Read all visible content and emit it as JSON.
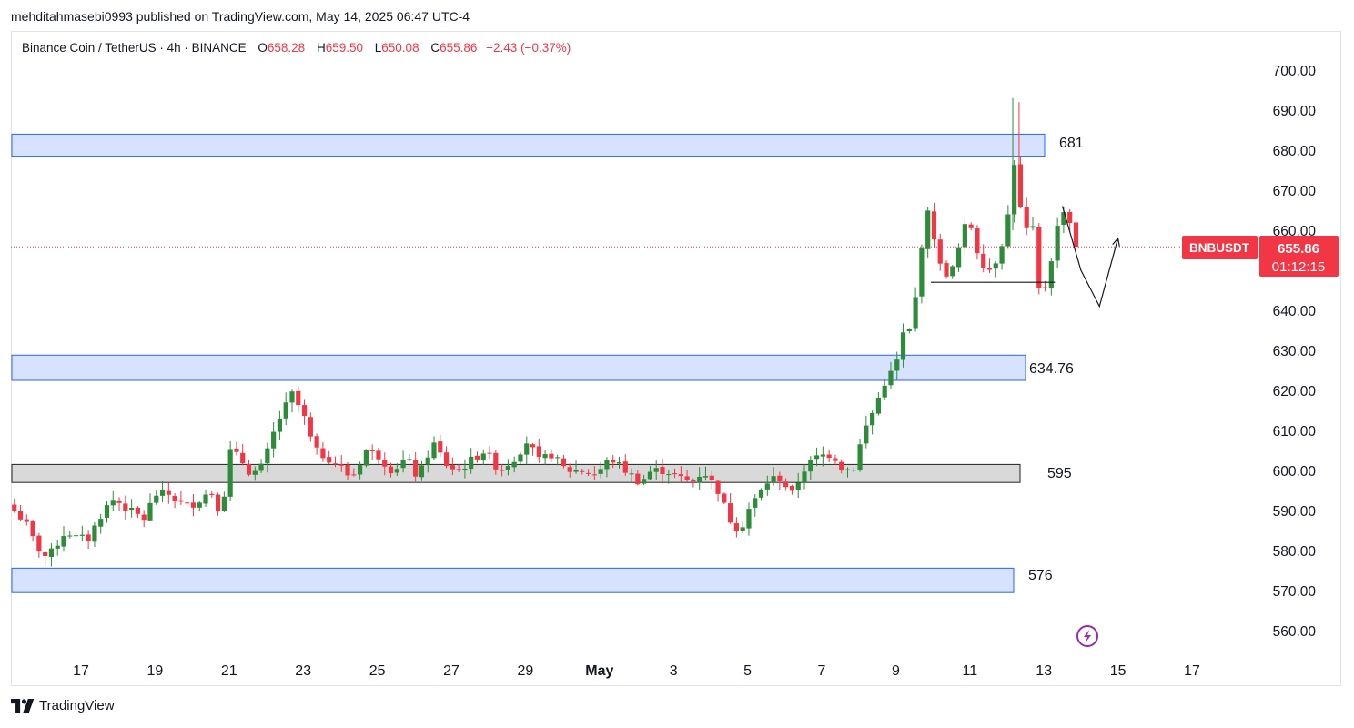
{
  "header": {
    "published": "mehditahmasebi0993 published on TradingView.com, May 14, 2025 06:47 UTC-4"
  },
  "legend": {
    "symbol": "Binance Coin / TetherUS · 4h · BINANCE",
    "open_label": "O",
    "open": "658.28",
    "high_label": "H",
    "high": "659.50",
    "low_label": "L",
    "low": "650.08",
    "close_label": "C",
    "close": "655.86",
    "change": "−2.43 (−0.37%)"
  },
  "price_tag": {
    "symbol": "BNBUSDT",
    "price": "655.86",
    "countdown": "01:12:15"
  },
  "footer": {
    "brand": "TradingView"
  },
  "colors": {
    "up": "#089981",
    "up_body": "#2e8b3a",
    "down": "#f23645",
    "zone_fill": "#d6e2ff",
    "zone_border": "#2962ff",
    "gray_zone_fill": "#d9d9d9",
    "gray_zone_border": "#222222",
    "price_line": "#f23645",
    "text": "#131722"
  },
  "icons": {
    "alert": "lightning-icon",
    "logo": "tradingview-logo-icon"
  },
  "chart_data": {
    "type": "candlestick",
    "title": "Binance Coin / TetherUS · 4h · BINANCE",
    "ylim": [
      555,
      702
    ],
    "y_ticks": [
      "700.00",
      "690.00",
      "680.00",
      "670.00",
      "660.00",
      "650.00",
      "640.00",
      "630.00",
      "620.00",
      "610.00",
      "600.00",
      "590.00",
      "580.00",
      "570.00",
      "560.00"
    ],
    "x_ticks": [
      {
        "label": "17",
        "day": 17
      },
      {
        "label": "19",
        "day": 19
      },
      {
        "label": "21",
        "day": 21
      },
      {
        "label": "23",
        "day": 23
      },
      {
        "label": "25",
        "day": 25
      },
      {
        "label": "27",
        "day": 27
      },
      {
        "label": "29",
        "day": 29
      },
      {
        "label": "May",
        "day": 31
      },
      {
        "label": "3",
        "day": 33
      },
      {
        "label": "5",
        "day": 35
      },
      {
        "label": "7",
        "day": 37
      },
      {
        "label": "9",
        "day": 39
      },
      {
        "label": "11",
        "day": 41
      },
      {
        "label": "13",
        "day": 43
      },
      {
        "label": "15",
        "day": 45
      },
      {
        "label": "17",
        "day": 47
      }
    ],
    "day_range": [
      15.2,
      47.5
    ],
    "candles_per_day": 6,
    "first_candle_day": 15.2,
    "close_path": [
      [
        15.2,
        590
      ],
      [
        15.5,
        587
      ],
      [
        15.8,
        581
      ],
      [
        16.1,
        578
      ],
      [
        16.3,
        581
      ],
      [
        16.6,
        585
      ],
      [
        16.9,
        583
      ],
      [
        17.2,
        583
      ],
      [
        17.6,
        590
      ],
      [
        17.9,
        593
      ],
      [
        18.3,
        590
      ],
      [
        18.7,
        588
      ],
      [
        19.0,
        594
      ],
      [
        19.4,
        594
      ],
      [
        19.8,
        591
      ],
      [
        20.1,
        592
      ],
      [
        20.5,
        595
      ],
      [
        20.8,
        589
      ],
      [
        21.0,
        605
      ],
      [
        21.3,
        603
      ],
      [
        21.6,
        599
      ],
      [
        21.9,
        601
      ],
      [
        22.3,
        612
      ],
      [
        22.7,
        619
      ],
      [
        23.0,
        614
      ],
      [
        23.3,
        605
      ],
      [
        23.7,
        603
      ],
      [
        24.0,
        601
      ],
      [
        24.3,
        598
      ],
      [
        24.7,
        605
      ],
      [
        25.0,
        604
      ],
      [
        25.4,
        600
      ],
      [
        25.8,
        603
      ],
      [
        26.1,
        598
      ],
      [
        26.5,
        607
      ],
      [
        26.9,
        601
      ],
      [
        27.2,
        600
      ],
      [
        27.6,
        603
      ],
      [
        27.9,
        605
      ],
      [
        28.3,
        600
      ],
      [
        28.7,
        603
      ],
      [
        29.1,
        608
      ],
      [
        29.3,
        602
      ],
      [
        29.7,
        604
      ],
      [
        30.1,
        600
      ],
      [
        30.5,
        600
      ],
      [
        30.9,
        599
      ],
      [
        31.3,
        603
      ],
      [
        31.7,
        600
      ],
      [
        32.1,
        597
      ],
      [
        32.4,
        600
      ],
      [
        32.8,
        600
      ],
      [
        33.2,
        598
      ],
      [
        33.5,
        597
      ],
      [
        33.8,
        600
      ],
      [
        34.2,
        595
      ],
      [
        34.5,
        588
      ],
      [
        34.8,
        585
      ],
      [
        35.0,
        590
      ],
      [
        35.3,
        594
      ],
      [
        35.6,
        598
      ],
      [
        35.9,
        598
      ],
      [
        36.2,
        594
      ],
      [
        36.5,
        600
      ],
      [
        36.8,
        603
      ],
      [
        37.1,
        604
      ],
      [
        37.3,
        604
      ],
      [
        37.6,
        600
      ],
      [
        37.9,
        601
      ],
      [
        38.1,
        609
      ],
      [
        38.4,
        615
      ],
      [
        38.7,
        622
      ],
      [
        39.0,
        626
      ],
      [
        39.2,
        634
      ],
      [
        39.4,
        635
      ],
      [
        39.6,
        647
      ],
      [
        39.8,
        666
      ],
      [
        40.0,
        660
      ],
      [
        40.2,
        651
      ],
      [
        40.4,
        649
      ],
      [
        40.6,
        651
      ],
      [
        40.8,
        660
      ],
      [
        41.0,
        662
      ],
      [
        41.2,
        655
      ],
      [
        41.4,
        651
      ],
      [
        41.6,
        650
      ],
      [
        41.8,
        655
      ],
      [
        42.0,
        661
      ],
      [
        42.2,
        677
      ],
      [
        42.3,
        668
      ],
      [
        42.5,
        660
      ],
      [
        42.7,
        660
      ],
      [
        42.9,
        642
      ],
      [
        43.1,
        648
      ],
      [
        43.3,
        658
      ],
      [
        43.5,
        666
      ],
      [
        43.7,
        662
      ],
      [
        43.9,
        659
      ],
      [
        44.0,
        655.86
      ]
    ],
    "annotations": [
      {
        "label": "681",
        "type": "zone",
        "from": 678.5,
        "to": 684
      },
      {
        "label": "634.76",
        "type": "zone",
        "from": 622.5,
        "to": 628.8
      },
      {
        "label": "595",
        "type": "gray-zone",
        "from": 597,
        "to": 601.5
      },
      {
        "label": "576",
        "type": "zone",
        "from": 569.5,
        "to": 575.6
      }
    ],
    "neckline": {
      "price": 647,
      "from_day": 39.95,
      "to_day": 43.3
    },
    "projection": [
      [
        43.5,
        666
      ],
      [
        44.0,
        650
      ],
      [
        44.5,
        641
      ],
      [
        45.0,
        658
      ]
    ],
    "last_price": 655.86
  }
}
